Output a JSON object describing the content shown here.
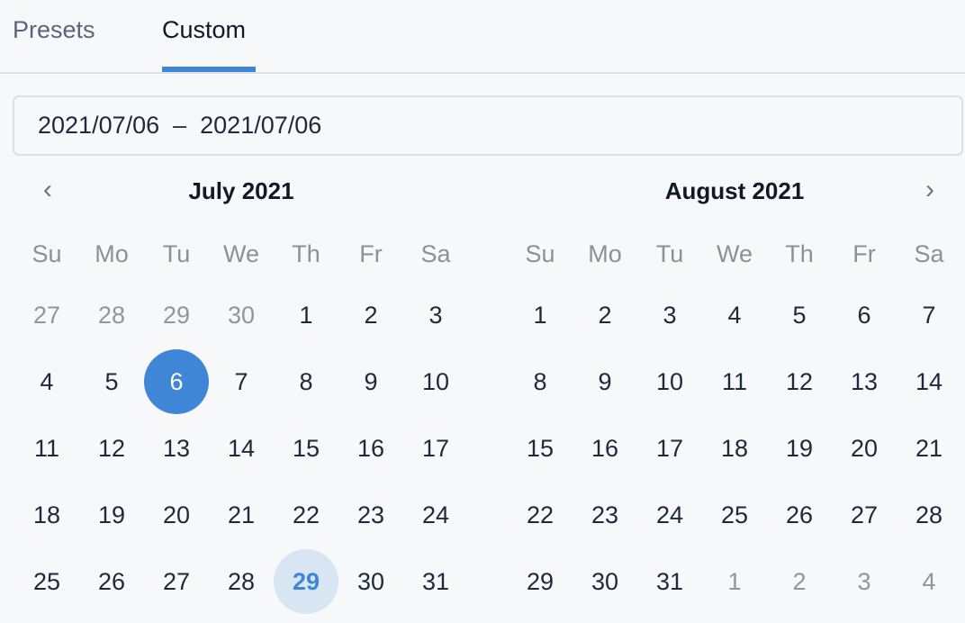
{
  "tabs": {
    "presets": "Presets",
    "custom": "Custom",
    "active": "custom"
  },
  "range_input": {
    "value": "2021/07/06  –  2021/07/06"
  },
  "nav": {
    "prev_icon": "chevron-left-icon",
    "next_icon": "chevron-right-icon",
    "prev": "‹",
    "next": "›"
  },
  "weekdays": [
    "Su",
    "Mo",
    "Tu",
    "We",
    "Th",
    "Fr",
    "Sa"
  ],
  "colors": {
    "accent": "#3f87d6",
    "today_bg": "#d8e6f4"
  },
  "months": [
    {
      "title": "July 2021",
      "selected": "6",
      "today": "29",
      "weeks": [
        [
          "27",
          "28",
          "29",
          "30",
          "1",
          "2",
          "3"
        ],
        [
          "4",
          "5",
          "6",
          "7",
          "8",
          "9",
          "10"
        ],
        [
          "11",
          "12",
          "13",
          "14",
          "15",
          "16",
          "17"
        ],
        [
          "18",
          "19",
          "20",
          "21",
          "22",
          "23",
          "24"
        ],
        [
          "25",
          "26",
          "27",
          "28",
          "29",
          "30",
          "31"
        ]
      ],
      "outside": [
        [
          0,
          0
        ],
        [
          0,
          1
        ],
        [
          0,
          2
        ],
        [
          0,
          3
        ]
      ]
    },
    {
      "title": "August 2021",
      "selected": null,
      "today": null,
      "weeks": [
        [
          "1",
          "2",
          "3",
          "4",
          "5",
          "6",
          "7"
        ],
        [
          "8",
          "9",
          "10",
          "11",
          "12",
          "13",
          "14"
        ],
        [
          "15",
          "16",
          "17",
          "18",
          "19",
          "20",
          "21"
        ],
        [
          "22",
          "23",
          "24",
          "25",
          "26",
          "27",
          "28"
        ],
        [
          "29",
          "30",
          "31",
          "1",
          "2",
          "3",
          "4"
        ]
      ],
      "outside": [
        [
          4,
          3
        ],
        [
          4,
          4
        ],
        [
          4,
          5
        ],
        [
          4,
          6
        ]
      ]
    }
  ]
}
